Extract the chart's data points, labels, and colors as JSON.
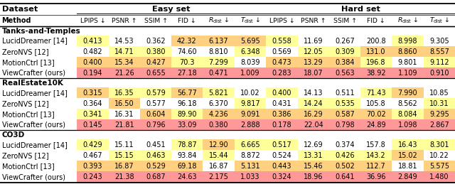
{
  "sections": [
    {
      "name": "Tanks-and-Temples",
      "rows": [
        [
          "LucidDreamer [14]",
          "0.413",
          "14.53",
          "0.362",
          "42.32",
          "6.137",
          "5.695",
          "0.558",
          "11.69",
          "0.267",
          "200.8",
          "8.998",
          "9.305"
        ],
        [
          "ZeroNVS [12]",
          "0.482",
          "14.71",
          "0.380",
          "74.60",
          "8.810",
          "6.348",
          "0.569",
          "12.05",
          "0.309",
          "131.0",
          "8.860",
          "8.557"
        ],
        [
          "MotionCtrl [13]",
          "0.400",
          "15.34",
          "0.427",
          "70.3",
          "7.299",
          "8.039",
          "0.473",
          "13.29",
          "0.384",
          "196.8",
          "9.801",
          "9.112"
        ],
        [
          "ViewCrafter (ours)",
          "0.194",
          "21.26",
          "0.655",
          "27.18",
          "0.471",
          "1.009",
          "0.283",
          "18.07",
          "0.563",
          "38.92",
          "1.109",
          "0.910"
        ]
      ]
    },
    {
      "name": "RealEstate10K",
      "rows": [
        [
          "LucidDreamer [14]",
          "0.315",
          "16.35",
          "0.579",
          "56.77",
          "5.821",
          "10.02",
          "0.400",
          "14.13",
          "0.511",
          "71.43",
          "7.990",
          "10.85"
        ],
        [
          "ZeroNVS [12]",
          "0.364",
          "16.50",
          "0.577",
          "96.18",
          "6.370",
          "9.817",
          "0.431",
          "14.24",
          "0.535",
          "105.8",
          "8.562",
          "10.31"
        ],
        [
          "MotionCtrl [13]",
          "0.341",
          "16.31",
          "0.604",
          "89.90",
          "4.236",
          "9.091",
          "0.386",
          "16.29",
          "0.587",
          "70.02",
          "8.084",
          "9.295"
        ],
        [
          "ViewCrafter (ours)",
          "0.145",
          "21.81",
          "0.796",
          "33.09",
          "0.380",
          "2.888",
          "0.178",
          "22.04",
          "0.798",
          "24.89",
          "1.098",
          "2.867"
        ]
      ]
    },
    {
      "name": "CO3D",
      "rows": [
        [
          "LucidDreamer [14]",
          "0.429",
          "15.11",
          "0.451",
          "78.87",
          "12.90",
          "6.665",
          "0.517",
          "12.69",
          "0.374",
          "157.8",
          "16.43",
          "8.301"
        ],
        [
          "ZeroNVS [12]",
          "0.467",
          "15.15",
          "0.463",
          "93.84",
          "15.44",
          "8.872",
          "0.524",
          "13.31",
          "0.426",
          "143.2",
          "15.02",
          "10.22"
        ],
        [
          "MotionCtrl [13]",
          "0.393",
          "16.87",
          "0.529",
          "69.18",
          "16.87",
          "5.131",
          "0.443",
          "15.46",
          "0.502",
          "112.7",
          "18.81",
          "5.575"
        ],
        [
          "ViewCrafter (ours)",
          "0.243",
          "21.38",
          "0.687",
          "24.63",
          "2.175",
          "1.033",
          "0.324",
          "18.96",
          "0.641",
          "36.96",
          "2.849",
          "1.480"
        ]
      ]
    }
  ],
  "higher_better": [
    false,
    true,
    true,
    false,
    false,
    false,
    false,
    true,
    true,
    false,
    false,
    false
  ],
  "color_best": "#FF9999",
  "color_2nd": "#FFD080",
  "color_3rd": "#FFFF99",
  "bg_color": "#FFFFFF",
  "col_widths_raw": [
    1.55,
    0.65,
    0.63,
    0.63,
    0.63,
    0.65,
    0.63,
    0.65,
    0.63,
    0.63,
    0.63,
    0.65,
    0.63
  ],
  "font_size": 7.0,
  "header_font_size": 8.2,
  "section_font_size": 7.5
}
